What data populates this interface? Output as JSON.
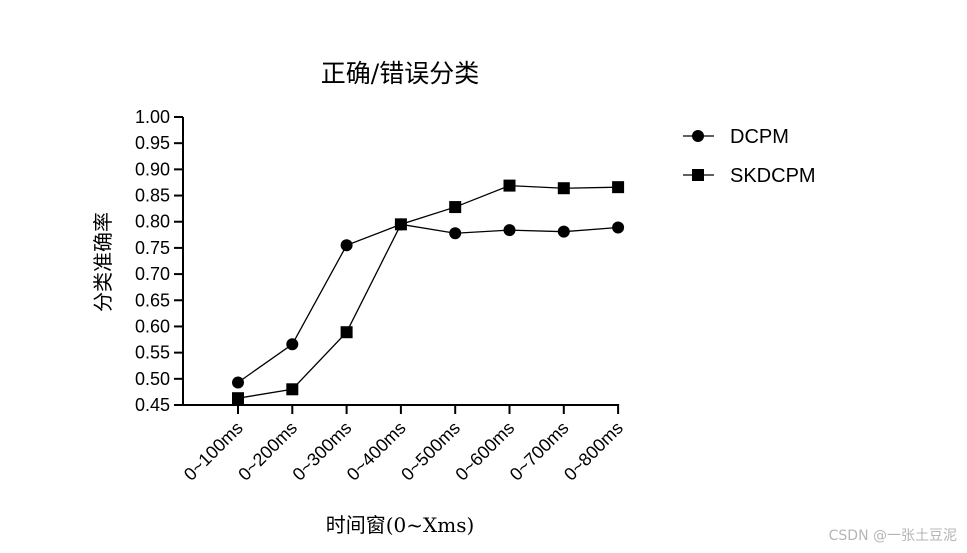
{
  "chart_data": {
    "type": "line",
    "title": "正确/错误分类",
    "xlabel": "时间窗(0~Xms)",
    "ylabel": "分类准确率",
    "categories": [
      "0~100ms",
      "0~200ms",
      "0~300ms",
      "0~400ms",
      "0~500ms",
      "0~600ms",
      "0~700ms",
      "0~800ms"
    ],
    "ylim": [
      0.45,
      1.0
    ],
    "yticks": [
      "0.45",
      "0.50",
      "0.55",
      "0.60",
      "0.65",
      "0.70",
      "0.75",
      "0.80",
      "0.85",
      "0.90",
      "0.95",
      "1.00"
    ],
    "grid": false,
    "legend": "top-right",
    "series": [
      {
        "name": "DCPM",
        "marker": "circle",
        "color": "#000000",
        "values": [
          0.493,
          0.566,
          0.755,
          0.795,
          0.778,
          0.784,
          0.781,
          0.789
        ]
      },
      {
        "name": "SKDCPM",
        "marker": "square",
        "color": "#000000",
        "values": [
          0.463,
          0.48,
          0.589,
          0.795,
          0.828,
          0.869,
          0.864,
          0.866
        ]
      }
    ]
  },
  "watermark": "CSDN @一张土豆泥"
}
